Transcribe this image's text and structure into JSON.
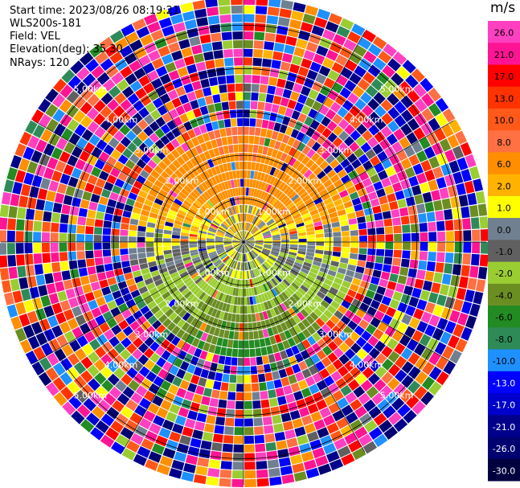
{
  "info": {
    "start_time": "Start time: 2023/08/26 08:19:21",
    "station": "WLS200s-181",
    "field": "Field: VEL",
    "elevation": "Elevation(deg): 35.30",
    "nrays": "NRays: 120"
  },
  "chart_data": {
    "type": "heatmap",
    "projection": "polar-ppi",
    "field": "VEL",
    "unit": "m/s",
    "n_rays": 120,
    "elevation_deg": 35.3,
    "range_rings_km": [
      1.0,
      2.0,
      3.0,
      4.0,
      5.0
    ],
    "ring_labels": [
      "1.00km",
      "2.00km",
      "3.00km",
      "4.00km",
      "5.00km"
    ],
    "max_range_km": 5.6,
    "colorbar": {
      "label": "m/s",
      "ticks": [
        "26.0",
        "21.0",
        "17.0",
        "13.0",
        "10.0",
        "8.0",
        "6.0",
        "2.0",
        "1.0",
        "0.0",
        "-1.0",
        "-2.0",
        "-4.0",
        "-6.0",
        "-8.0",
        "-10.0",
        "-13.0",
        "-17.0",
        "-21.0",
        "-26.0",
        "-30.0"
      ],
      "colors": [
        "#ff40c0",
        "#ff1493",
        "#ff0000",
        "#ff3300",
        "#ff5a1a",
        "#ff7043",
        "#ff8f00",
        "#ffb300",
        "#ffff00",
        "#708090",
        "#606060",
        "#9acd32",
        "#6b8e23",
        "#228b22",
        "#2e8b57",
        "#1e90ff",
        "#0000ff",
        "#0000cd",
        "#00008b",
        "#000070",
        "#000040"
      ]
    }
  }
}
